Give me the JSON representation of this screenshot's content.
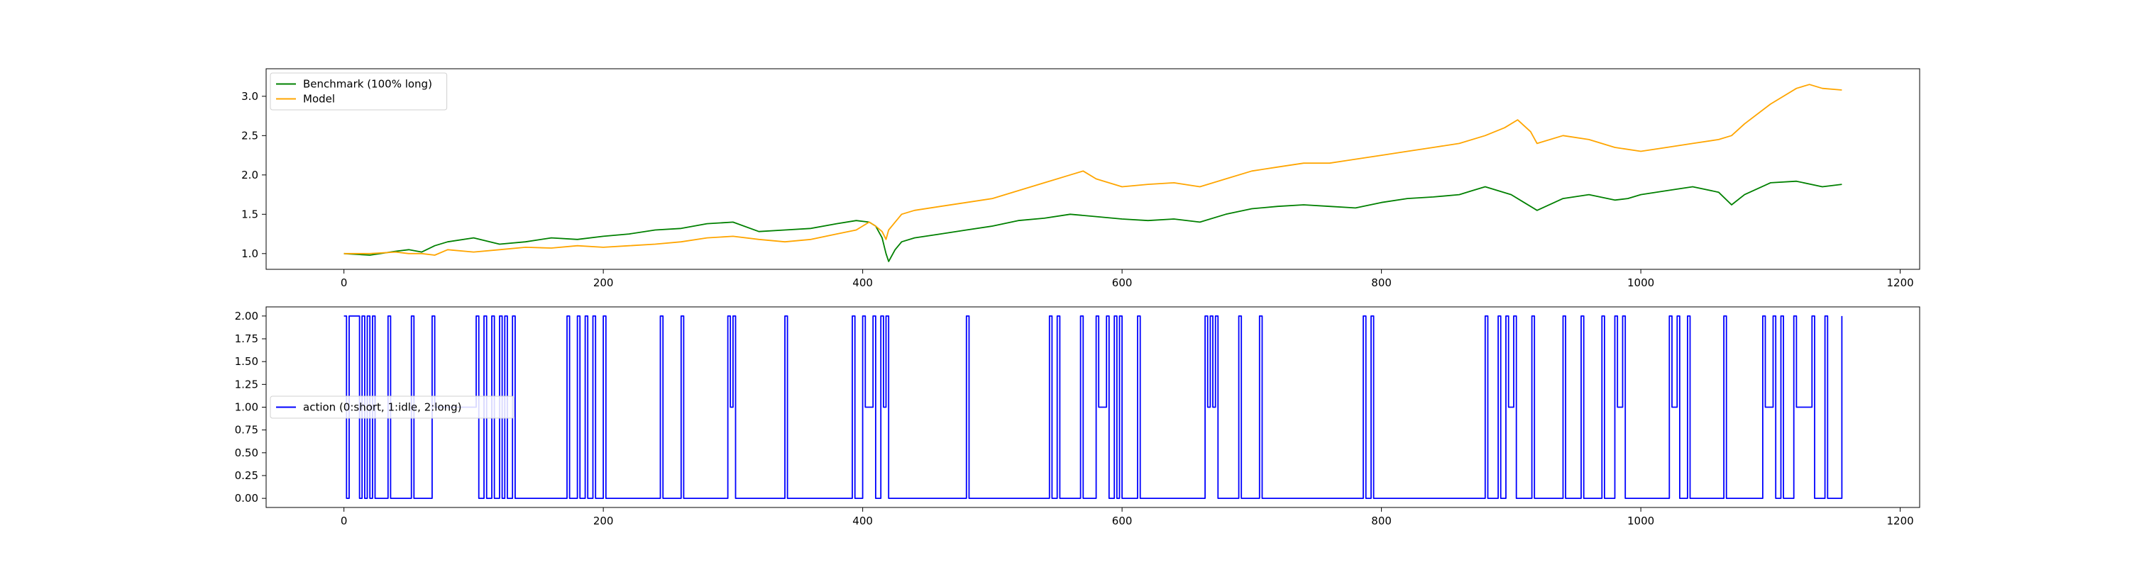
{
  "chart_data": [
    {
      "type": "line",
      "title": "",
      "xlabel": "",
      "ylabel": "",
      "xlim": [
        -60,
        1215
      ],
      "ylim": [
        0.8,
        3.35
      ],
      "xticks": [
        0,
        200,
        400,
        600,
        800,
        1000,
        1200
      ],
      "yticks": [
        1.0,
        1.5,
        2.0,
        2.5,
        3.0
      ],
      "xtick_labels": [
        "0",
        "200",
        "400",
        "600",
        "800",
        "1000",
        "1200"
      ],
      "ytick_labels": [
        "1.0",
        "1.5",
        "2.0",
        "2.5",
        "3.0"
      ],
      "grid": false,
      "legend_position": "upper-left",
      "series": [
        {
          "name": "Benchmark (100% long)",
          "color": "#008000",
          "x": [
            0,
            20,
            40,
            50,
            60,
            70,
            80,
            100,
            120,
            140,
            160,
            180,
            200,
            220,
            240,
            260,
            280,
            300,
            320,
            340,
            360,
            380,
            395,
            405,
            410,
            415,
            418,
            420,
            425,
            430,
            440,
            460,
            480,
            500,
            520,
            540,
            560,
            580,
            600,
            620,
            640,
            660,
            680,
            700,
            720,
            740,
            760,
            780,
            800,
            820,
            840,
            860,
            870,
            880,
            900,
            910,
            920,
            940,
            960,
            980,
            990,
            1000,
            1020,
            1040,
            1060,
            1070,
            1080,
            1100,
            1120,
            1140,
            1155
          ],
          "y": [
            1.0,
            0.98,
            1.03,
            1.05,
            1.02,
            1.1,
            1.15,
            1.2,
            1.12,
            1.15,
            1.2,
            1.18,
            1.22,
            1.25,
            1.3,
            1.32,
            1.38,
            1.4,
            1.28,
            1.3,
            1.32,
            1.38,
            1.42,
            1.4,
            1.35,
            1.2,
            1.0,
            0.9,
            1.05,
            1.15,
            1.2,
            1.25,
            1.3,
            1.35,
            1.42,
            1.45,
            1.5,
            1.47,
            1.44,
            1.42,
            1.44,
            1.4,
            1.5,
            1.57,
            1.6,
            1.62,
            1.6,
            1.58,
            1.65,
            1.7,
            1.72,
            1.75,
            1.8,
            1.85,
            1.75,
            1.65,
            1.55,
            1.7,
            1.75,
            1.68,
            1.7,
            1.75,
            1.8,
            1.85,
            1.78,
            1.62,
            1.75,
            1.9,
            1.92,
            1.85,
            1.88
          ]
        },
        {
          "name": "Model",
          "color": "#ffa500",
          "x": [
            0,
            20,
            40,
            50,
            60,
            70,
            80,
            100,
            120,
            140,
            160,
            180,
            200,
            220,
            240,
            260,
            280,
            300,
            320,
            340,
            360,
            380,
            395,
            405,
            410,
            415,
            418,
            420,
            425,
            430,
            440,
            460,
            480,
            500,
            520,
            540,
            560,
            570,
            580,
            600,
            620,
            640,
            660,
            680,
            700,
            720,
            740,
            760,
            780,
            800,
            820,
            840,
            860,
            880,
            895,
            905,
            915,
            920,
            940,
            960,
            980,
            1000,
            1020,
            1040,
            1060,
            1070,
            1080,
            1100,
            1120,
            1130,
            1140,
            1155
          ],
          "y": [
            1.0,
            1.0,
            1.02,
            1.0,
            1.0,
            0.98,
            1.05,
            1.02,
            1.05,
            1.08,
            1.07,
            1.1,
            1.08,
            1.1,
            1.12,
            1.15,
            1.2,
            1.22,
            1.18,
            1.15,
            1.18,
            1.25,
            1.3,
            1.4,
            1.35,
            1.28,
            1.18,
            1.3,
            1.4,
            1.5,
            1.55,
            1.6,
            1.65,
            1.7,
            1.8,
            1.9,
            2.0,
            2.05,
            1.95,
            1.85,
            1.88,
            1.9,
            1.85,
            1.95,
            2.05,
            2.1,
            2.15,
            2.15,
            2.2,
            2.25,
            2.3,
            2.35,
            2.4,
            2.5,
            2.6,
            2.7,
            2.55,
            2.4,
            2.5,
            2.45,
            2.35,
            2.3,
            2.35,
            2.4,
            2.45,
            2.5,
            2.65,
            2.9,
            3.1,
            3.15,
            3.1,
            3.08
          ]
        }
      ]
    },
    {
      "type": "line",
      "title": "",
      "xlabel": "",
      "ylabel": "",
      "xlim": [
        -60,
        1215
      ],
      "ylim": [
        -0.1,
        2.1
      ],
      "xticks": [
        0,
        200,
        400,
        600,
        800,
        1000,
        1200
      ],
      "yticks": [
        0.0,
        0.25,
        0.5,
        0.75,
        1.0,
        1.25,
        1.5,
        1.75,
        2.0
      ],
      "xtick_labels": [
        "0",
        "200",
        "400",
        "600",
        "800",
        "1000",
        "1200"
      ],
      "ytick_labels": [
        "0.00",
        "0.25",
        "0.50",
        "0.75",
        "1.00",
        "1.25",
        "1.50",
        "1.75",
        "2.00"
      ],
      "grid": false,
      "legend_position": "center-left",
      "series": [
        {
          "name": "action (0:short, 1:idle, 2:long)",
          "color": "#0000ff",
          "step": true,
          "x": [
            0,
            2,
            4,
            12,
            14,
            16,
            18,
            20,
            22,
            24,
            34,
            36,
            52,
            54,
            68,
            70,
            102,
            104,
            108,
            110,
            114,
            116,
            120,
            122,
            124,
            126,
            130,
            132,
            172,
            174,
            180,
            182,
            186,
            188,
            192,
            194,
            200,
            202,
            244,
            246,
            260,
            262,
            296,
            298,
            300,
            302,
            340,
            342,
            392,
            394,
            400,
            402,
            408,
            410,
            414,
            416,
            418,
            420,
            480,
            482,
            544,
            546,
            550,
            552,
            568,
            570,
            580,
            582,
            588,
            590,
            594,
            596,
            598,
            600,
            612,
            614,
            664,
            666,
            668,
            670,
            672,
            674,
            690,
            692,
            706,
            708,
            786,
            788,
            792,
            794,
            880,
            882,
            890,
            892,
            896,
            898,
            902,
            904,
            916,
            918,
            940,
            942,
            954,
            956,
            970,
            972,
            980,
            982,
            986,
            988,
            1022,
            1024,
            1028,
            1030,
            1036,
            1038,
            1064,
            1066,
            1094,
            1096,
            1102,
            1104,
            1108,
            1110,
            1118,
            1120,
            1132,
            1134,
            1142,
            1144,
            1155
          ],
          "y": [
            2,
            0,
            2,
            0,
            2,
            0,
            2,
            0,
            2,
            0,
            2,
            0,
            2,
            0,
            2,
            1,
            2,
            0,
            2,
            0,
            2,
            0,
            2,
            0,
            2,
            0,
            2,
            0,
            2,
            0,
            2,
            0,
            2,
            0,
            2,
            0,
            2,
            0,
            2,
            0,
            2,
            0,
            2,
            1,
            2,
            0,
            2,
            0,
            2,
            0,
            2,
            1,
            2,
            0,
            2,
            1,
            2,
            0,
            2,
            0,
            2,
            0,
            2,
            0,
            2,
            0,
            2,
            1,
            2,
            0,
            2,
            0,
            2,
            0,
            2,
            0,
            2,
            1,
            2,
            1,
            2,
            0,
            2,
            0,
            2,
            0,
            2,
            0,
            2,
            0,
            2,
            0,
            2,
            0,
            2,
            1,
            2,
            0,
            2,
            0,
            2,
            0,
            2,
            0,
            2,
            0,
            2,
            1,
            2,
            0,
            2,
            1,
            2,
            0,
            2,
            0,
            2,
            0,
            2,
            1,
            2,
            0,
            2,
            0,
            2,
            1,
            2,
            0,
            2,
            0,
            2
          ]
        }
      ]
    }
  ]
}
